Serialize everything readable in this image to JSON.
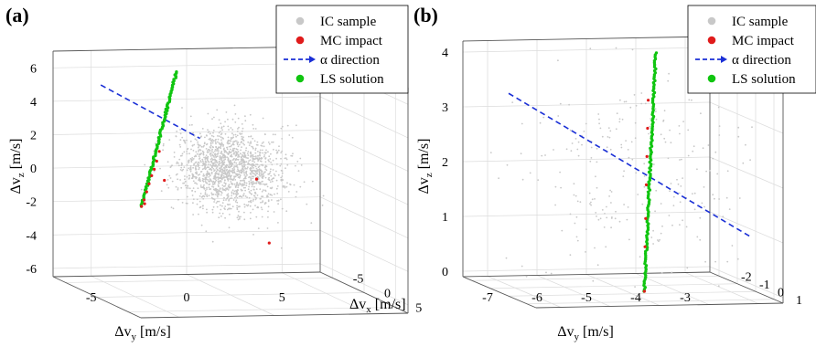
{
  "figure": {
    "legend": [
      "IC sample",
      "MC impact",
      "α direction",
      "LS solution"
    ],
    "colors": {
      "ic": "#c8c8c8",
      "mc": "#e01b1b",
      "alpha": "#1a2fd6",
      "ls": "#10c510"
    }
  },
  "chart_data": [
    {
      "type": "scatter",
      "panel_label": "(a)",
      "dims": 3,
      "xlabel": "Δv_x [m/s]",
      "ylabel": "Δv_y [m/s]",
      "zlabel": "Δv_z [m/s]",
      "xlim": [
        -7,
        7
      ],
      "ylim": [
        -7,
        7
      ],
      "zlim": [
        -6.5,
        7
      ],
      "x_ticks": [
        "-5",
        "0",
        "5"
      ],
      "y_ticks": [
        "-5",
        "0",
        "5"
      ],
      "z_ticks": [
        "-6",
        "-4",
        "-2",
        "0",
        "2",
        "4",
        "6"
      ],
      "grid": true,
      "legend_position": "top-right",
      "series": [
        {
          "name": "IC sample",
          "kind": "cloud",
          "center": [
            0,
            0,
            1
          ],
          "spread": [
            3,
            3,
            2.2
          ],
          "count": 1600
        },
        {
          "name": "MC impact",
          "kind": "points",
          "points": [
            [
              -0.5,
              -4.5,
              -1.2
            ],
            [
              -0.4,
              -4.4,
              -0.8
            ],
            [
              -0.3,
              -4.3,
              -0.3
            ],
            [
              -0.2,
              -4.2,
              0.2
            ],
            [
              -0.1,
              -4.1,
              0.7
            ],
            [
              0,
              -4,
              1.1
            ],
            [
              0.1,
              -3.9,
              1.6
            ],
            [
              0.2,
              -3.8,
              2.2
            ],
            [
              0.4,
              -3.6,
              0.5
            ],
            [
              0.5,
              1.2,
              0.5
            ],
            [
              0.7,
              1.8,
              -3.3
            ],
            [
              0.3,
              -4.6,
              -0.9
            ]
          ]
        },
        {
          "name": "α direction",
          "kind": "line",
          "points": [
            [
              0,
              -6.8,
              6.2
            ],
            [
              0,
              -1.6,
              2.9
            ]
          ]
        },
        {
          "name": "LS solution",
          "kind": "line_points",
          "start": [
            -0.5,
            -4.5,
            -1.2
          ],
          "end": [
            0.5,
            -3.0,
            7.0
          ],
          "count": 90
        }
      ]
    },
    {
      "type": "scatter",
      "panel_label": "(b)",
      "dims": 3,
      "xlabel": "",
      "ylabel": "Δv_y [m/s]",
      "zlabel": "Δv_z [m/s]",
      "xlim": [
        -2.5,
        1.5
      ],
      "ylim": [
        -7.5,
        -2.5
      ],
      "zlim": [
        -0.1,
        4.2
      ],
      "x_ticks": [
        "-2",
        "-1",
        "0",
        "1"
      ],
      "y_ticks": [
        "-7",
        "-6",
        "-5",
        "-4",
        "-3"
      ],
      "z_ticks": [
        "0",
        "1",
        "2",
        "3",
        "4"
      ],
      "grid": true,
      "legend_position": "top-right",
      "series": [
        {
          "name": "IC sample",
          "kind": "cloud",
          "center": [
            -0.5,
            -4.8,
            2
          ],
          "spread": [
            2.5,
            2.5,
            2
          ],
          "count": 300
        },
        {
          "name": "MC impact",
          "kind": "points",
          "points": [
            [
              0.4,
              -4.9,
              0.0
            ],
            [
              0.3,
              -4.85,
              0.8
            ],
            [
              0.2,
              -4.8,
              1.3
            ],
            [
              0.1,
              -4.75,
              1.9
            ],
            [
              0,
              -4.7,
              2.4
            ],
            [
              -0.1,
              -4.65,
              2.9
            ],
            [
              -0.2,
              -4.6,
              3.4
            ]
          ]
        },
        {
          "name": "α direction",
          "kind": "line",
          "points": [
            [
              0,
              -7.5,
              3.6
            ],
            [
              0,
              -2.6,
              0.9
            ]
          ]
        },
        {
          "name": "LS solution",
          "kind": "line_points",
          "start": [
            0.4,
            -4.9,
            0.0
          ],
          "end": [
            -0.6,
            -4.3,
            4.2
          ],
          "count": 120
        }
      ]
    }
  ]
}
